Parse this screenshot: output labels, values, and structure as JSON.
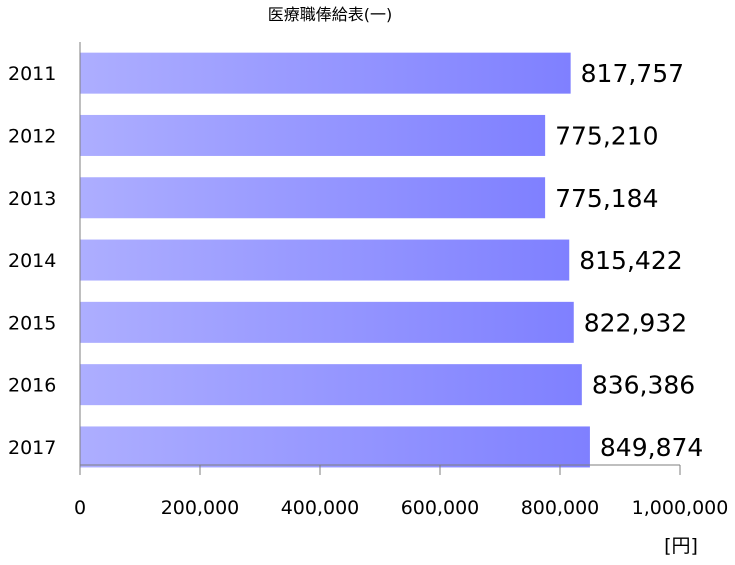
{
  "chart_data": {
    "type": "bar",
    "orientation": "horizontal",
    "title": "医療職俸給表(一)",
    "unit": "[円]",
    "categories": [
      "2011",
      "2012",
      "2013",
      "2014",
      "2015",
      "2016",
      "2017"
    ],
    "values": [
      817757,
      775210,
      775184,
      815422,
      822932,
      836386,
      849874
    ],
    "value_labels": [
      "817,757",
      "775,210",
      "775,184",
      "815,422",
      "822,932",
      "836,386",
      "849,874"
    ],
    "xlim": [
      0,
      1000000
    ],
    "x_ticks": [
      0,
      200000,
      400000,
      600000,
      800000,
      1000000
    ],
    "x_tick_labels": [
      "0",
      "200,000",
      "400,000",
      "600,000",
      "800,000",
      "1,000,000"
    ],
    "grid": false,
    "legend": "none",
    "colors": {
      "bar_start": "#adaeff",
      "bar_end": "#7f80ff"
    }
  }
}
